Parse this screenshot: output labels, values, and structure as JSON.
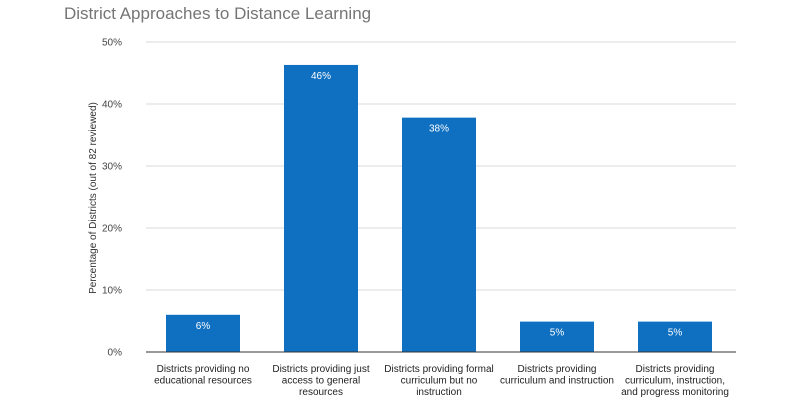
{
  "chart_data": {
    "type": "bar",
    "title": "District Approaches to Distance Learning",
    "xlabel": "",
    "ylabel": "Percentage of Districts (out of 82 reviewed)",
    "ylim": [
      0,
      50
    ],
    "yticks": [
      "0%",
      "10%",
      "20%",
      "30%",
      "40%",
      "50%"
    ],
    "ytick_values": [
      0,
      10,
      20,
      30,
      40,
      50
    ],
    "grid": true,
    "legend": "none",
    "bar_color": "#0f6fc0",
    "categories": [
      [
        "Districts providing no",
        "educational resources"
      ],
      [
        "Districts providing just",
        "access to general",
        "resources"
      ],
      [
        "Districts providing formal",
        "curriculum but no",
        "instruction"
      ],
      [
        "Districts providing",
        "curriculum and instruction"
      ],
      [
        "Districts providing",
        "curriculum, instruction,",
        "and progress monitoring"
      ]
    ],
    "values": [
      6,
      46.3,
      37.8,
      4.9,
      4.9
    ],
    "data_labels": [
      "6%",
      "46%",
      "38%",
      "5%",
      "5%"
    ]
  }
}
